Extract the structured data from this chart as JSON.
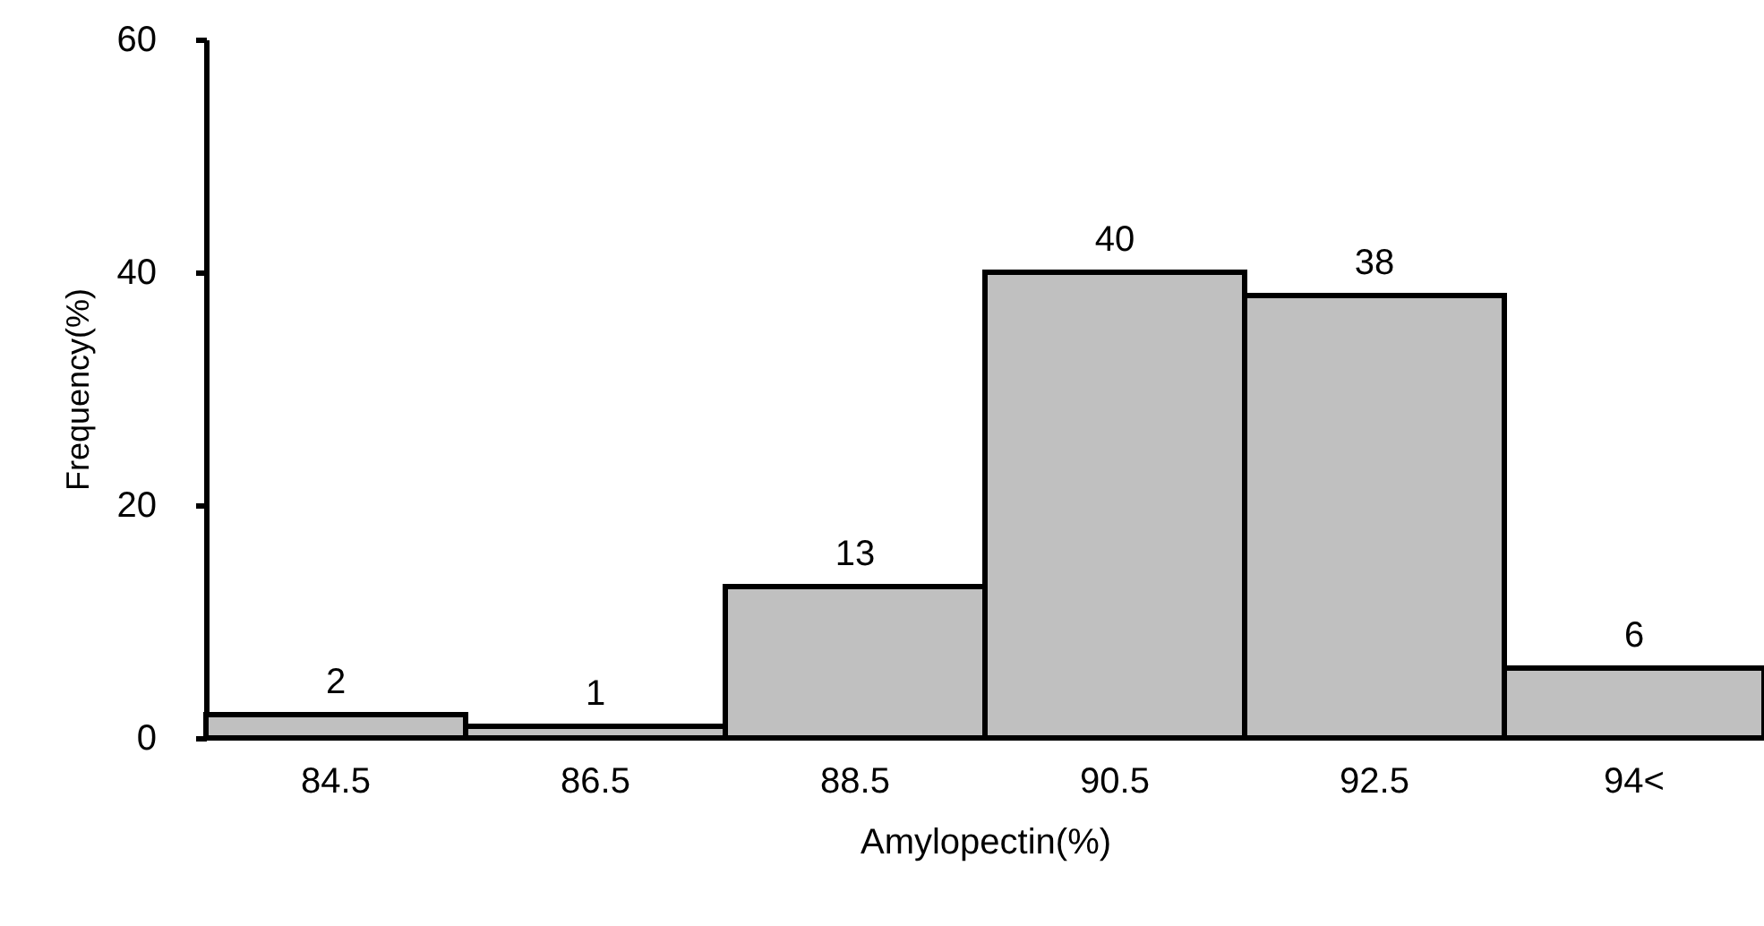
{
  "chart_data": {
    "type": "bar",
    "xlabel": "Amylopectin(%)",
    "ylabel": "Frequency(%)",
    "categories": [
      "84.5",
      "86.5",
      "88.5",
      "90.5",
      "92.5",
      "94<"
    ],
    "values": [
      2,
      1,
      13,
      40,
      38,
      6
    ],
    "color": "#c0c0c0",
    "ylim": [
      0,
      60
    ],
    "yticks": [
      0,
      20,
      40,
      60
    ],
    "grid": false,
    "data_labels": true
  }
}
